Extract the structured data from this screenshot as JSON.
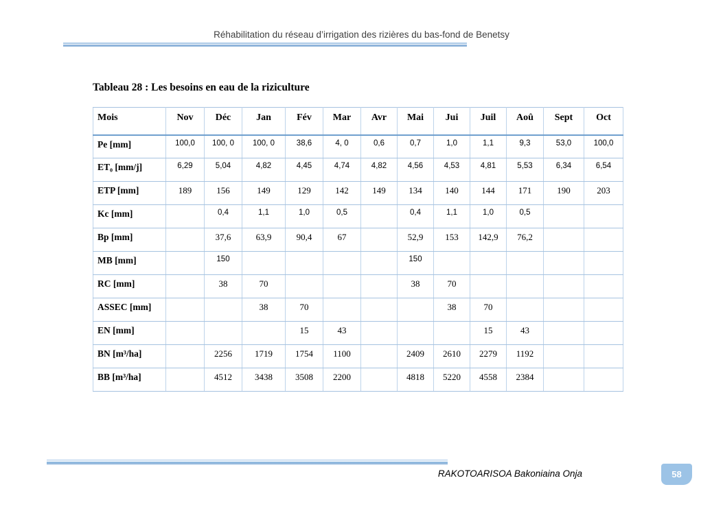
{
  "header": {
    "title": "Réhabilitation du réseau d’irrigation des rizières du bas-fond de Benetsy"
  },
  "document": {
    "table_caption": "Tableau 28 : Les besoins en eau de la riziculture"
  },
  "table": {
    "columns": [
      "Mois",
      "Nov",
      "Déc",
      "Jan",
      "Fév",
      "Mar",
      "Avr",
      "Mai",
      "Jui",
      "Juil",
      "Aoû",
      "Sept",
      "Oct"
    ],
    "rows": [
      {
        "label": "Pe [mm]",
        "values": [
          "100,0",
          "100, 0",
          "100, 0",
          "38,6",
          "4, 0",
          "0,6",
          "0,7",
          "1,0",
          "1,1",
          "9,3",
          "53,0",
          "100,0"
        ]
      },
      {
        "label": "ET₀ [mm/j]",
        "values": [
          "6,29",
          "5,04",
          "4,82",
          "4,45",
          "4,74",
          "4,82",
          "4,56",
          "4,53",
          "4,81",
          "5,53",
          "6,34",
          "6,54"
        ]
      },
      {
        "label": "ETP [mm]",
        "values": [
          "189",
          "156",
          "149",
          "129",
          "142",
          "149",
          "134",
          "140",
          "144",
          "171",
          "190",
          "203"
        ]
      },
      {
        "label": "Kc [mm]",
        "values": [
          "",
          "0,4",
          "1,1",
          "1,0",
          "0,5",
          "",
          "0,4",
          "1,1",
          "1,0",
          "0,5",
          "",
          ""
        ]
      },
      {
        "label": "Bp [mm]",
        "values": [
          "",
          "37,6",
          "63,9",
          "90,4",
          "67",
          "",
          "52,9",
          "153",
          "142,9",
          "76,2",
          "",
          ""
        ]
      },
      {
        "label": "MB [mm]",
        "values": [
          "",
          "150",
          "",
          "",
          "",
          "",
          "150",
          "",
          "",
          "",
          "",
          ""
        ]
      },
      {
        "label": "RC [mm]",
        "values": [
          "",
          "38",
          "70",
          "",
          "",
          "",
          "38",
          "70",
          "",
          "",
          "",
          ""
        ]
      },
      {
        "label": "ASSEC [mm]",
        "values": [
          "",
          "",
          "38",
          "70",
          "",
          "",
          "",
          "38",
          "70",
          "",
          "",
          ""
        ]
      },
      {
        "label": "EN [mm]",
        "values": [
          "",
          "",
          "",
          "15",
          "43",
          "",
          "",
          "",
          "15",
          "43",
          "",
          ""
        ]
      },
      {
        "label": "BN [m³/ha]",
        "values": [
          "",
          "2256",
          "1719",
          "1754",
          "1100",
          "",
          "2409",
          "2610",
          "2279",
          "1192",
          "",
          ""
        ]
      },
      {
        "label": "BB [m³/ha]",
        "values": [
          "",
          "4512",
          "3438",
          "3508",
          "2200",
          "",
          "4818",
          "5220",
          "4558",
          "2384",
          "",
          ""
        ]
      }
    ]
  },
  "footer": {
    "author": "RAKOTOARISOA Bakoniaina Onja",
    "page_number": "58"
  },
  "colors": {
    "accent_blue": "#9cc3e6",
    "table_grid_vertical": "#bdd3ea",
    "table_grid_horizontal": "#a5c2e0",
    "header_row_rule": "#6f9fce",
    "page_number_text": "#ffffff"
  }
}
